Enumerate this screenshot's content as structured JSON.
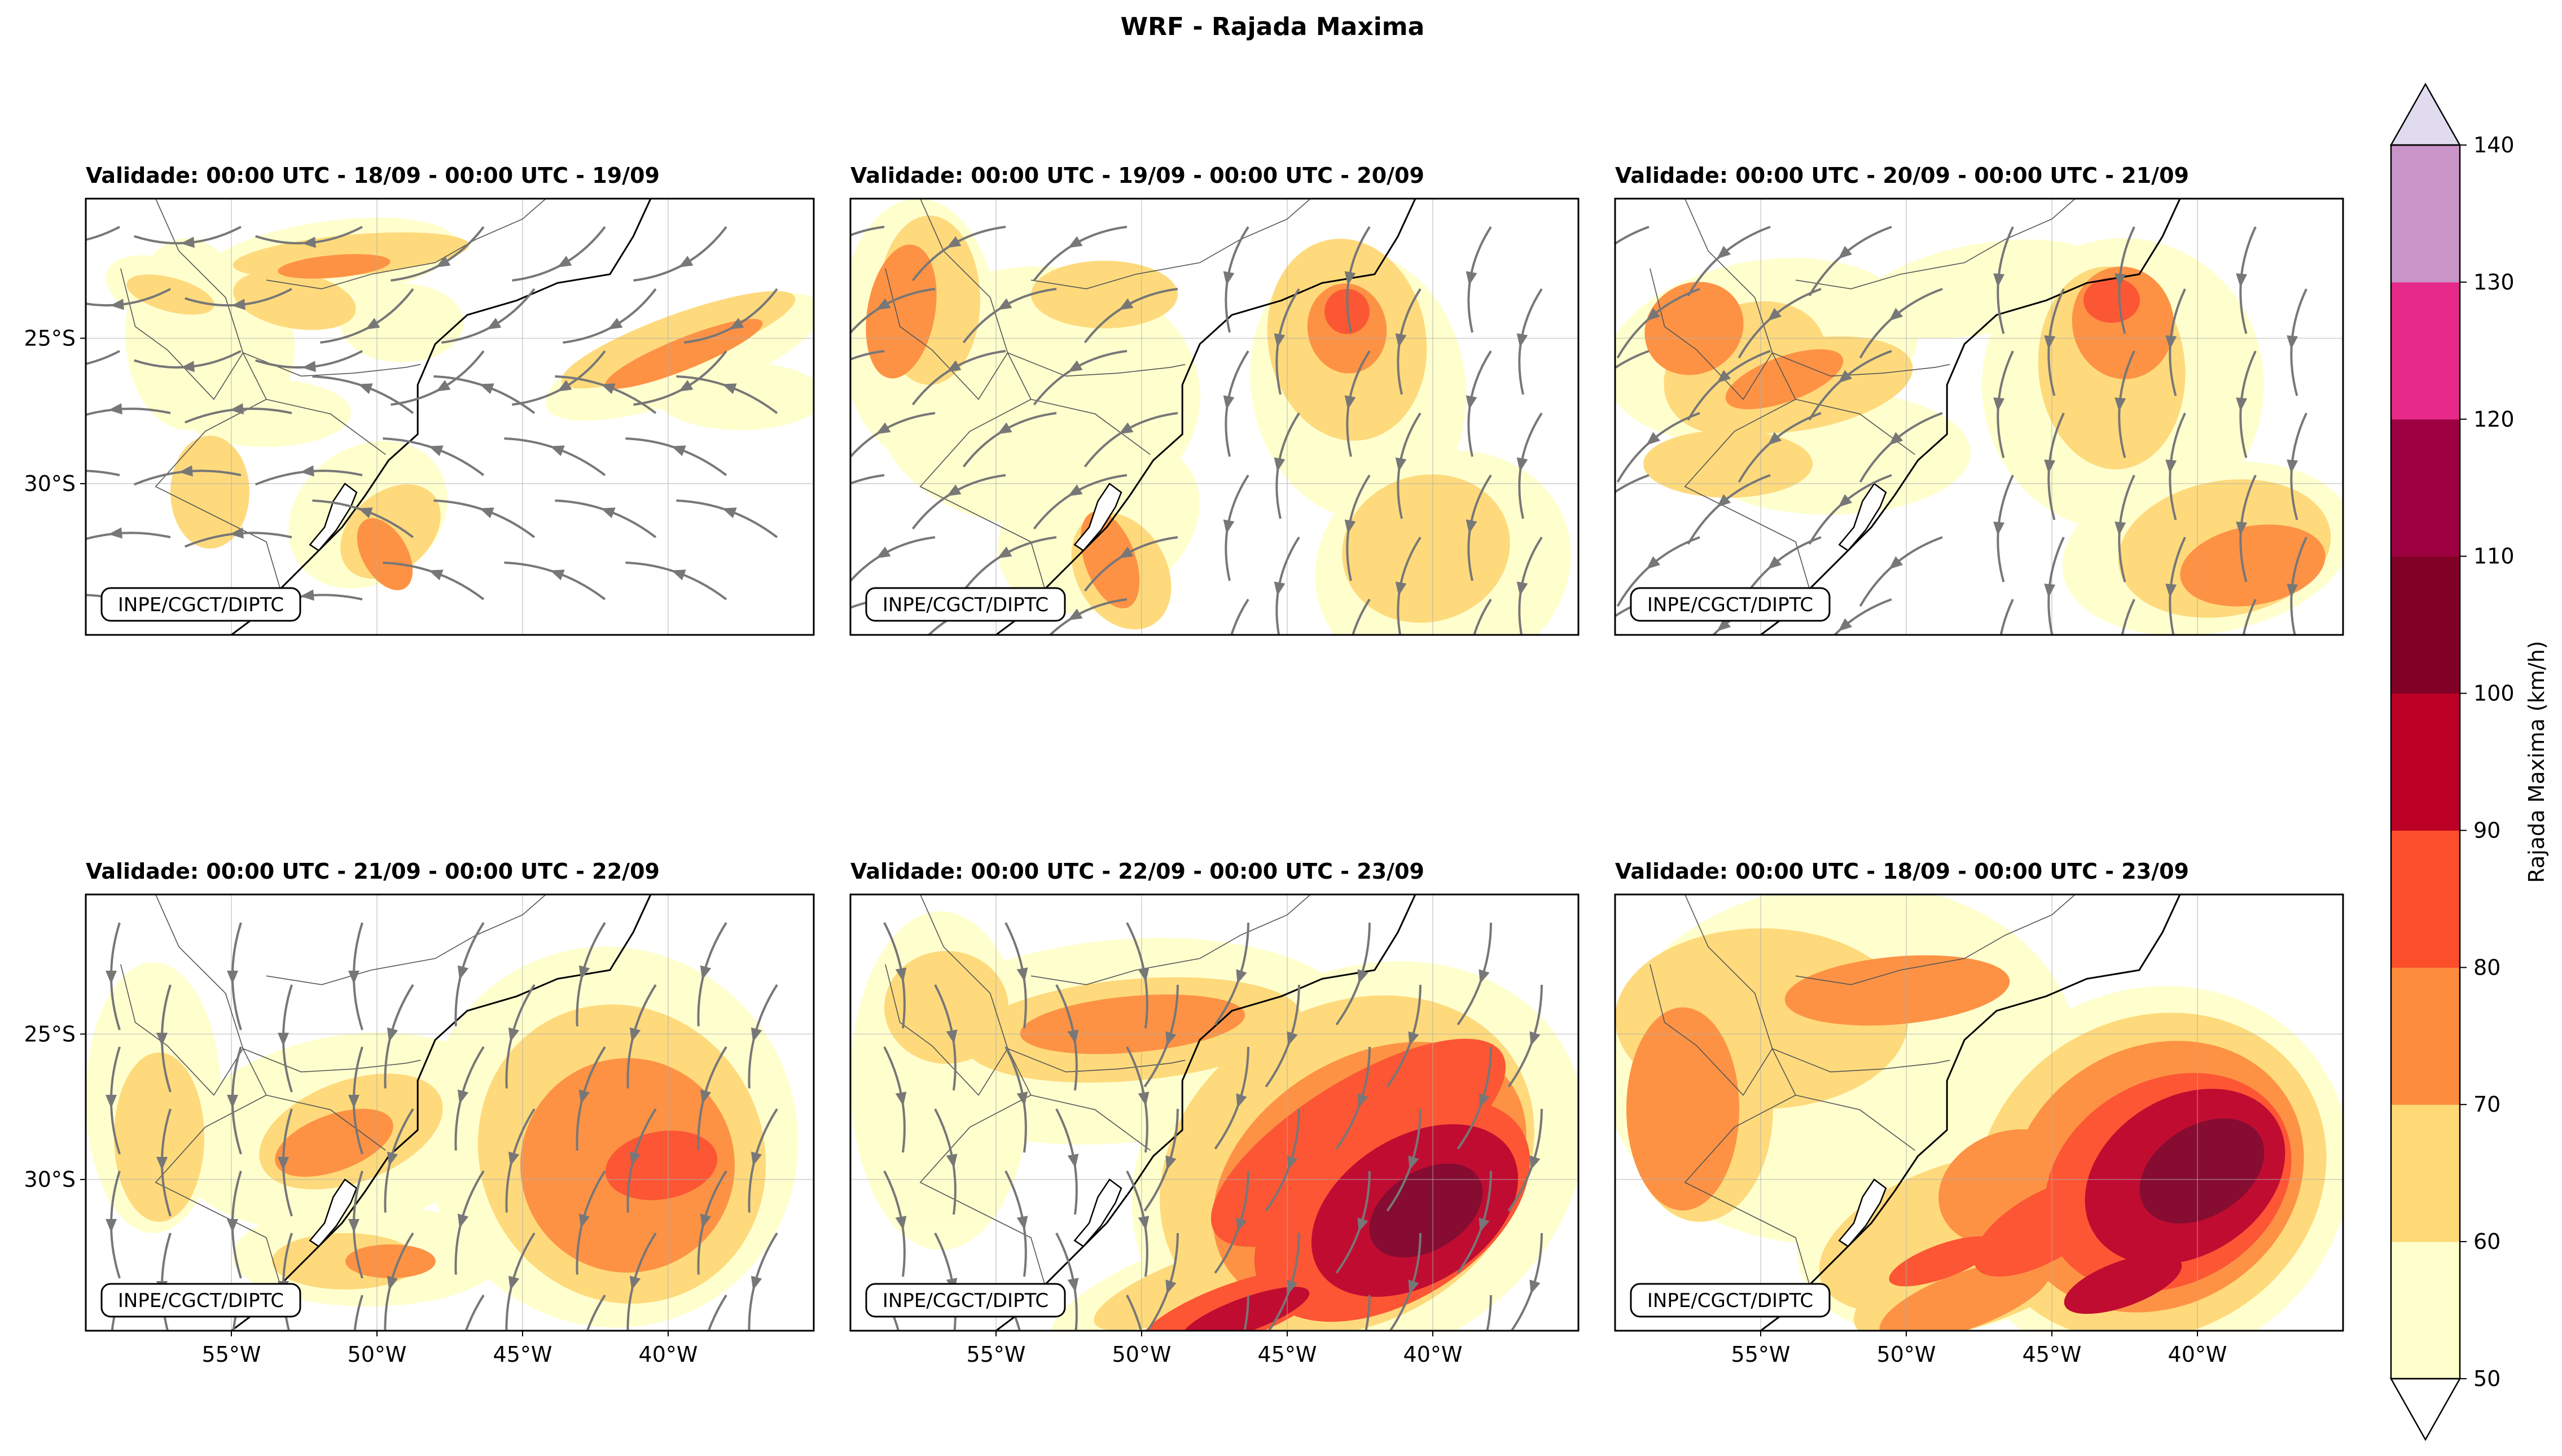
{
  "chart_data": {
    "type": "heatmap",
    "title": "WRF - Rajada Maxima",
    "credit": "INPE/CGCT/DIPTC",
    "variable": "Rajada Maxima",
    "colorbar": {
      "label": "Rajada Maxima (km/h)",
      "levels": [
        50,
        60,
        70,
        80,
        90,
        100,
        110,
        120,
        130,
        140
      ],
      "tick_labels": [
        "50",
        "60",
        "70",
        "80",
        "90",
        "100",
        "110",
        "120",
        "130",
        "140"
      ],
      "colors": [
        "#ffffcc",
        "#fed976",
        "#fd8d3c",
        "#fc4e2a",
        "#bd0026",
        "#800026",
        "#9e0142",
        "#e7298a",
        "#c994c7"
      ],
      "under_color": "#ffffff",
      "over_color": "#e0dbee",
      "extend": "both"
    },
    "x_ticks": [
      "55°W",
      "50°W",
      "45°W",
      "40°W"
    ],
    "y_ticks": [
      "25°S",
      "30°S"
    ],
    "panels": [
      {
        "title": "Validade: 00:00 UTC - 18/09 - 00:00 UTC - 19/09",
        "max_class": 70
      },
      {
        "title": "Validade: 00:00 UTC - 19/09 - 00:00 UTC - 20/09",
        "max_class": 80
      },
      {
        "title": "Validade: 00:00 UTC - 20/09 - 00:00 UTC - 21/09",
        "max_class": 80
      },
      {
        "title": "Validade: 00:00 UTC - 21/09 - 00:00 UTC - 22/09",
        "max_class": 80
      },
      {
        "title": "Validade: 00:00 UTC - 22/09 - 00:00 UTC - 23/09",
        "max_class": 100
      },
      {
        "title": "Validade: 00:00 UTC - 18/09 - 00:00 UTC - 23/09",
        "max_class": 100
      }
    ]
  }
}
